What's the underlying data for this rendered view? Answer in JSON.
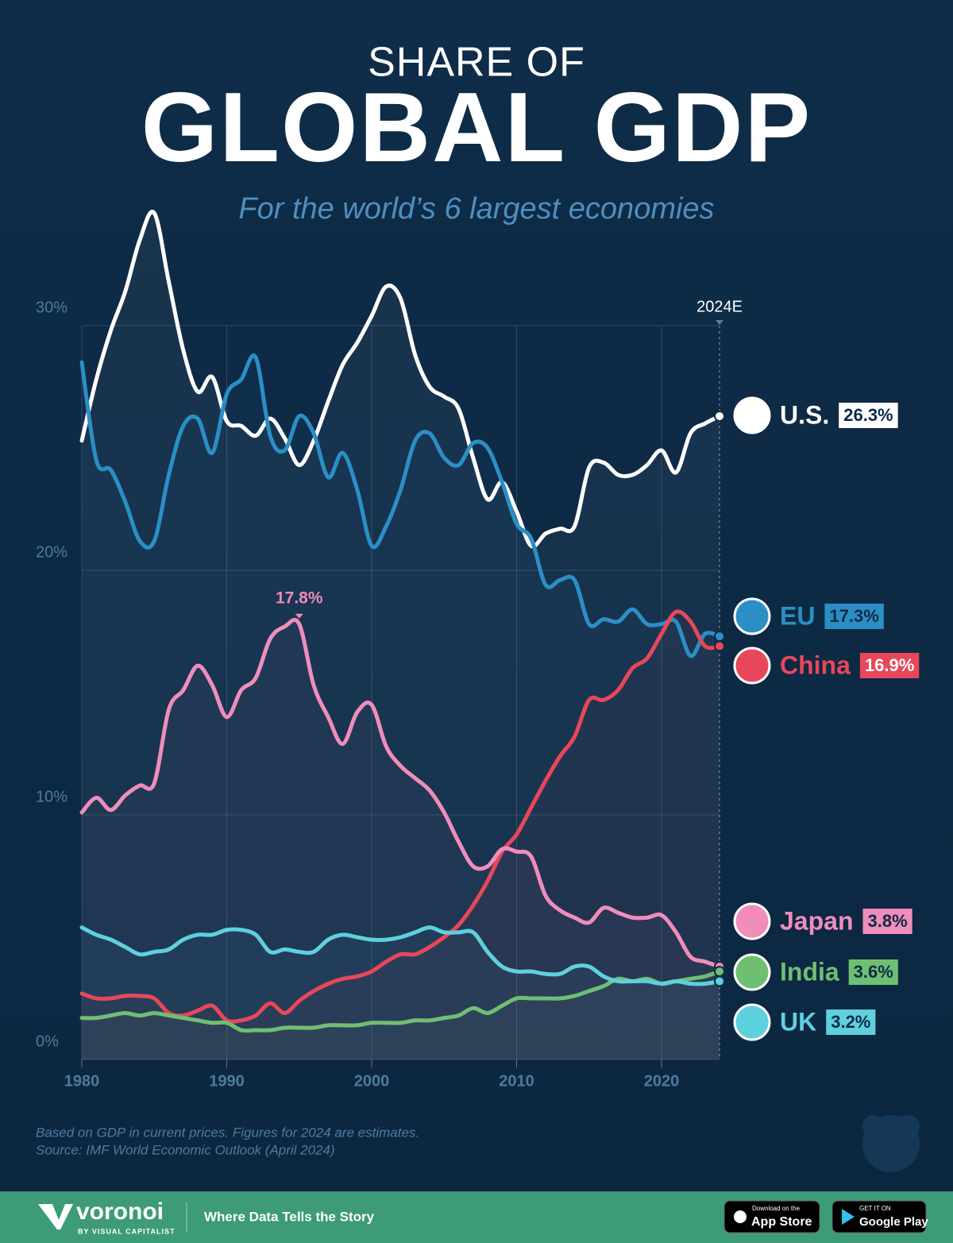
{
  "chart_data": {
    "type": "line",
    "title_lines": [
      "SHARE OF",
      "GLOBAL GDP"
    ],
    "subtitle": "For the world’s 6 largest economies",
    "annotation": "2024E",
    "x": [
      1980,
      1981,
      1982,
      1983,
      1984,
      1985,
      1986,
      1987,
      1988,
      1989,
      1990,
      1991,
      1992,
      1993,
      1994,
      1995,
      1996,
      1997,
      1998,
      1999,
      2000,
      2001,
      2002,
      2003,
      2004,
      2005,
      2006,
      2007,
      2008,
      2009,
      2010,
      2011,
      2012,
      2013,
      2014,
      2015,
      2016,
      2017,
      2018,
      2019,
      2020,
      2021,
      2022,
      2023,
      2024
    ],
    "xlim": [
      1980,
      2024
    ],
    "xticks": [
      1980,
      1990,
      2000,
      2010,
      2020
    ],
    "ylim": [
      0,
      30
    ],
    "yticks": [
      {
        "value": 0,
        "label": "0%"
      },
      {
        "value": 10,
        "label": "10%"
      },
      {
        "value": 20,
        "label": "20%"
      },
      {
        "value": 30,
        "label": "30%"
      }
    ],
    "grid": true,
    "series": [
      {
        "name": "U.S.",
        "color": "#ffffff",
        "values": [
          25.3,
          27.8,
          29.8,
          31.4,
          33.5,
          34.6,
          31.8,
          29.0,
          27.3,
          27.9,
          26.1,
          25.9,
          25.5,
          26.2,
          25.4,
          24.3,
          25.3,
          26.9,
          28.4,
          29.3,
          30.4,
          31.6,
          31.1,
          28.8,
          27.5,
          27.1,
          26.6,
          24.6,
          22.9,
          23.6,
          22.4,
          21.0,
          21.5,
          21.7,
          21.8,
          24.2,
          24.4,
          23.9,
          23.9,
          24.3,
          24.9,
          24.0,
          25.6,
          26.0,
          26.3
        ],
        "value_labels": [
          null,
          null,
          null,
          null,
          null,
          null,
          null,
          null,
          null,
          null,
          null,
          null,
          null,
          null,
          null,
          null,
          null,
          null,
          null,
          null,
          null,
          null,
          null,
          null,
          null,
          null,
          null,
          null,
          null,
          null,
          null,
          null,
          null,
          null,
          null,
          null,
          null,
          null,
          null,
          null,
          null,
          null,
          null,
          null,
          "26.3%"
        ]
      },
      {
        "name": "EU",
        "color": "#2b8fc6",
        "values": [
          28.5,
          24.5,
          24.1,
          22.8,
          21.2,
          21.2,
          23.9,
          25.9,
          26.2,
          24.8,
          27.2,
          27.8,
          28.7,
          25.5,
          24.9,
          26.3,
          25.6,
          23.8,
          24.8,
          23.3,
          21.0,
          21.8,
          23.3,
          25.3,
          25.6,
          24.6,
          24.3,
          25.2,
          25.0,
          23.6,
          21.9,
          21.3,
          19.4,
          19.6,
          19.6,
          17.8,
          18.0,
          17.9,
          18.4,
          17.8,
          17.8,
          17.9,
          16.5,
          17.4,
          17.3
        ],
        "value_labels": [
          null,
          null,
          null,
          null,
          null,
          null,
          null,
          null,
          null,
          null,
          null,
          null,
          null,
          null,
          null,
          null,
          null,
          null,
          null,
          null,
          null,
          null,
          null,
          null,
          null,
          null,
          null,
          null,
          null,
          null,
          null,
          null,
          null,
          null,
          null,
          null,
          null,
          null,
          null,
          null,
          null,
          null,
          null,
          null,
          "17.3%"
        ]
      },
      {
        "name": "China",
        "color": "#e8475a",
        "values": [
          2.7,
          2.5,
          2.5,
          2.6,
          2.6,
          2.5,
          1.9,
          1.8,
          2.0,
          2.2,
          1.6,
          1.6,
          1.8,
          2.3,
          1.9,
          2.4,
          2.8,
          3.1,
          3.3,
          3.4,
          3.6,
          4.0,
          4.3,
          4.3,
          4.6,
          5.0,
          5.5,
          6.3,
          7.3,
          8.5,
          9.2,
          10.3,
          11.4,
          12.4,
          13.2,
          14.7,
          14.7,
          15.1,
          16.0,
          16.4,
          17.4,
          18.3,
          17.9,
          16.9,
          16.9
        ],
        "value_labels": [
          null,
          null,
          null,
          null,
          null,
          null,
          null,
          null,
          null,
          null,
          null,
          null,
          null,
          null,
          null,
          null,
          null,
          null,
          null,
          null,
          null,
          null,
          null,
          null,
          null,
          null,
          null,
          null,
          null,
          null,
          null,
          null,
          null,
          null,
          null,
          null,
          null,
          null,
          null,
          null,
          null,
          null,
          null,
          null,
          "16.9%"
        ]
      },
      {
        "name": "Japan",
        "color": "#f08dbb",
        "values": [
          10.1,
          10.7,
          10.2,
          10.8,
          11.2,
          11.3,
          14.3,
          15.1,
          16.1,
          15.3,
          14.0,
          15.1,
          15.6,
          17.2,
          17.7,
          17.8,
          15.3,
          14.0,
          12.9,
          14.2,
          14.5,
          12.8,
          12.0,
          11.5,
          11.0,
          10.1,
          8.9,
          7.9,
          7.9,
          8.6,
          8.5,
          8.3,
          6.7,
          6.1,
          5.8,
          5.6,
          6.2,
          6.0,
          5.8,
          5.8,
          5.9,
          5.2,
          4.2,
          4.0,
          3.8
        ],
        "value_labels": [
          null,
          null,
          null,
          null,
          null,
          null,
          null,
          null,
          null,
          null,
          null,
          null,
          null,
          null,
          null,
          "17.8%",
          null,
          null,
          null,
          null,
          null,
          null,
          null,
          null,
          null,
          null,
          null,
          null,
          null,
          null,
          null,
          null,
          null,
          null,
          null,
          null,
          null,
          null,
          null,
          null,
          null,
          null,
          null,
          null,
          "3.8%"
        ]
      },
      {
        "name": "India",
        "color": "#6fbf73",
        "values": [
          1.7,
          1.7,
          1.8,
          1.9,
          1.8,
          1.9,
          1.8,
          1.7,
          1.6,
          1.5,
          1.5,
          1.2,
          1.2,
          1.2,
          1.3,
          1.3,
          1.3,
          1.4,
          1.4,
          1.4,
          1.5,
          1.5,
          1.5,
          1.6,
          1.6,
          1.7,
          1.8,
          2.1,
          1.9,
          2.2,
          2.5,
          2.5,
          2.5,
          2.5,
          2.6,
          2.8,
          3.0,
          3.3,
          3.2,
          3.3,
          3.1,
          3.2,
          3.3,
          3.4,
          3.6
        ],
        "value_labels": [
          null,
          null,
          null,
          null,
          null,
          null,
          null,
          null,
          null,
          null,
          null,
          null,
          null,
          null,
          null,
          null,
          null,
          null,
          null,
          null,
          null,
          null,
          null,
          null,
          null,
          null,
          null,
          null,
          null,
          null,
          null,
          null,
          null,
          null,
          null,
          null,
          null,
          null,
          null,
          null,
          null,
          null,
          null,
          null,
          "3.6%"
        ]
      },
      {
        "name": "UK",
        "color": "#5fd0dd",
        "values": [
          5.4,
          5.1,
          4.9,
          4.6,
          4.3,
          4.4,
          4.5,
          4.9,
          5.1,
          5.1,
          5.3,
          5.3,
          5.1,
          4.4,
          4.5,
          4.4,
          4.4,
          4.9,
          5.1,
          5.0,
          4.9,
          4.9,
          5.0,
          5.2,
          5.4,
          5.2,
          5.2,
          5.2,
          4.4,
          3.8,
          3.6,
          3.6,
          3.5,
          3.5,
          3.8,
          3.8,
          3.4,
          3.2,
          3.2,
          3.2,
          3.1,
          3.2,
          3.1,
          3.1,
          3.2
        ],
        "value_labels": [
          null,
          null,
          null,
          null,
          null,
          null,
          null,
          null,
          null,
          null,
          null,
          null,
          null,
          null,
          null,
          null,
          null,
          null,
          null,
          null,
          null,
          null,
          null,
          null,
          null,
          null,
          null,
          null,
          null,
          null,
          null,
          null,
          null,
          null,
          null,
          null,
          null,
          null,
          null,
          null,
          null,
          null,
          null,
          null,
          "3.2%"
        ]
      }
    ]
  },
  "footnote": [
    "Based on GDP in current prices. Figures for 2024 are estimates.",
    "Source: IMF World Economic Outlook (April 2024)"
  ],
  "footer": {
    "brand": "voronoi",
    "byline": "BY VISUAL CAPITALIST",
    "tagline": "Where Data Tells the Story",
    "app_store": [
      "Download on the",
      "App Store"
    ],
    "google_play": [
      "GET IT ON",
      "Google Play"
    ]
  }
}
